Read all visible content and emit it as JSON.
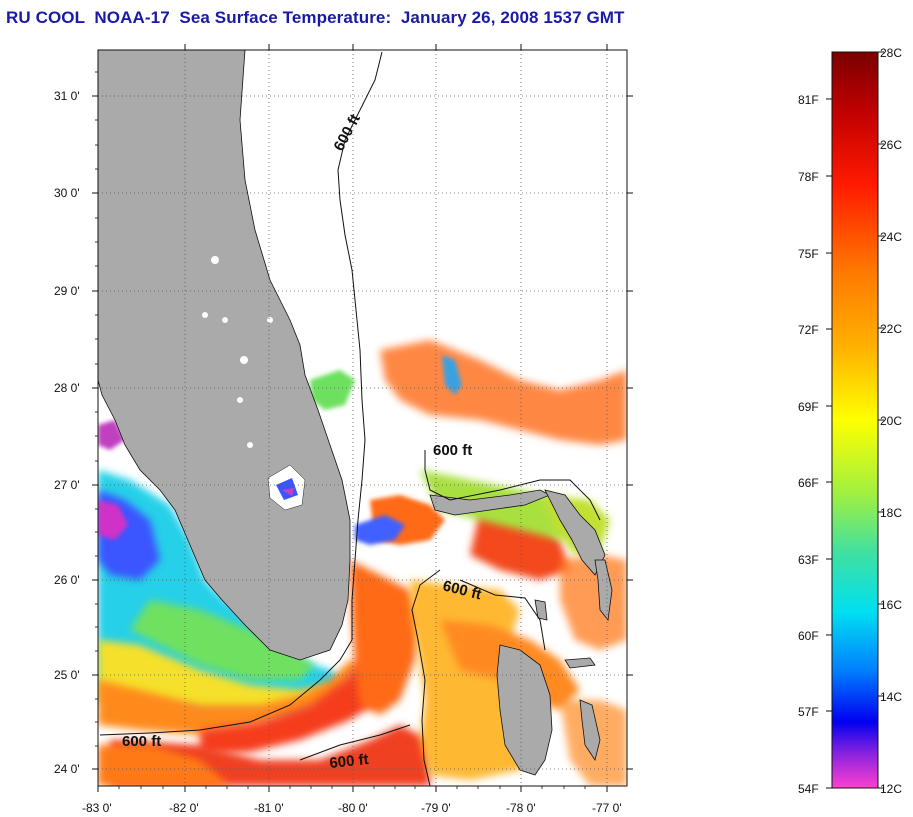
{
  "title": "RU COOL  NOAA-17  Sea Surface Temperature:  January 26, 2008 1537 GMT",
  "map": {
    "lat_ticks": [
      "31 0'",
      "30 0'",
      "29 0'",
      "28 0'",
      "27 0'",
      "26 0'",
      "25 0'",
      "24 0'"
    ],
    "lon_ticks": [
      "-83 0'",
      "-82 0'",
      "-81 0'",
      "-80 0'",
      "-79 0'",
      "-78 0'",
      "-77 0'"
    ],
    "contour_labels": [
      "600 ft",
      "600 ft",
      "600 ft",
      "600 ft",
      "600 ft"
    ],
    "land_color": "#aaaaaa",
    "cloud_color": "#ffffff"
  },
  "colorbar": {
    "celsius_labels": [
      "28C",
      "26C",
      "24C",
      "22C",
      "20C",
      "18C",
      "16C",
      "14C",
      "12C"
    ],
    "fahrenheit_labels": [
      "81F",
      "78F",
      "75F",
      "72F",
      "69F",
      "66F",
      "63F",
      "60F",
      "57F",
      "54F"
    ]
  }
}
